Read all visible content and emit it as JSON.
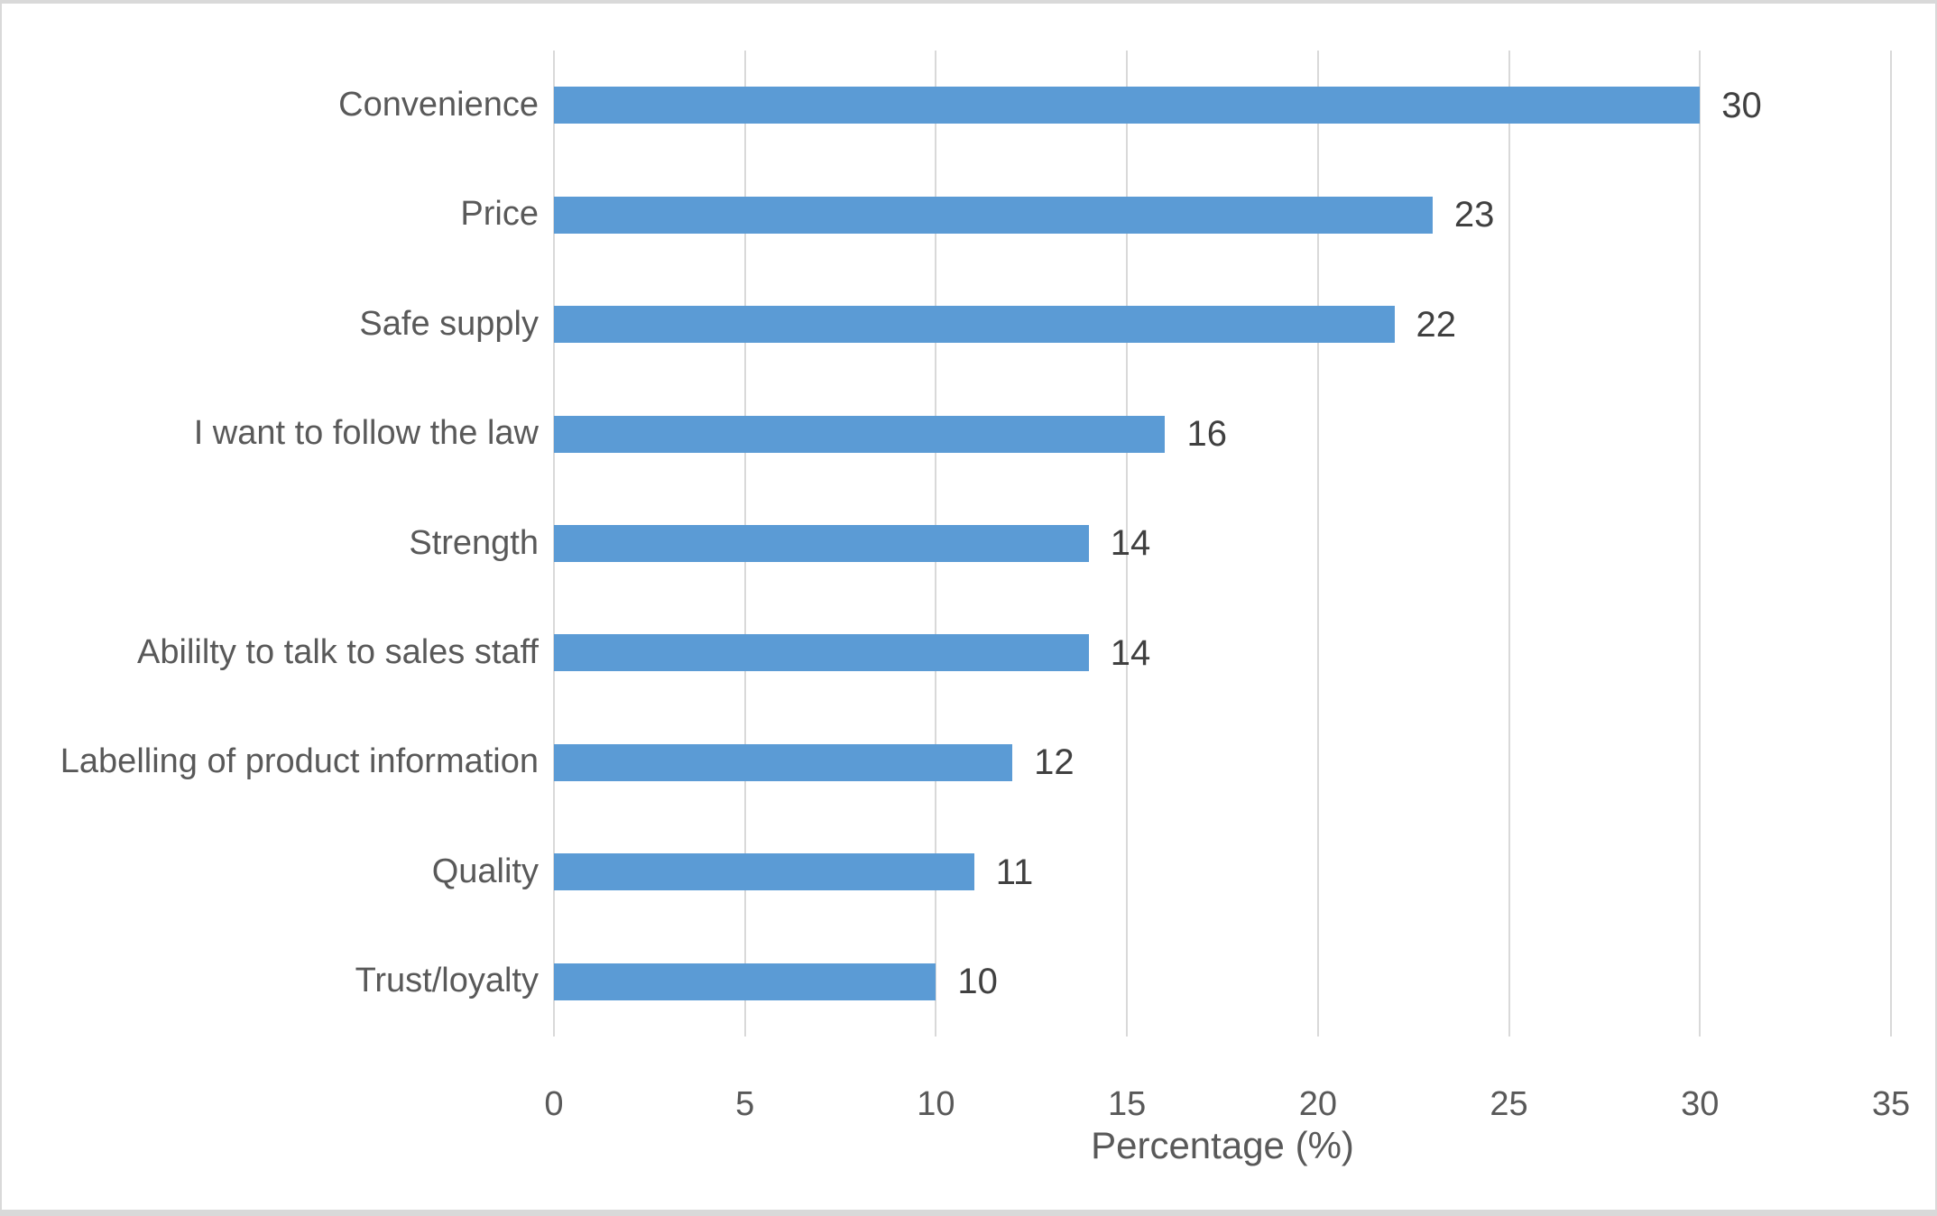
{
  "figure": {
    "background": "#ffffff",
    "border_color": "#d9d9d9"
  },
  "chart_data": {
    "type": "bar",
    "orientation": "horizontal",
    "title": "",
    "categories": [
      "Convenience",
      "Price",
      "Safe supply",
      "I want to follow the law",
      "Strength",
      "Abililty to talk to sales staff",
      "Labelling of product information",
      "Quality",
      "Trust/loyalty"
    ],
    "values": [
      30,
      23,
      22,
      16,
      14,
      14,
      12,
      11,
      10
    ],
    "data_labels": [
      "30",
      "23",
      "22",
      "16",
      "14",
      "14",
      "12",
      "11",
      "10"
    ],
    "xlabel": "Percentage (%)",
    "xlim": [
      0,
      35
    ],
    "xticks": [
      0,
      5,
      10,
      15,
      20,
      25,
      30,
      35
    ],
    "grid": true,
    "legend": "none",
    "bar_color": "#5b9bd5",
    "gridline_color": "#d9d9d9",
    "axis_label_color": "#595959",
    "value_label_color": "#404040"
  }
}
